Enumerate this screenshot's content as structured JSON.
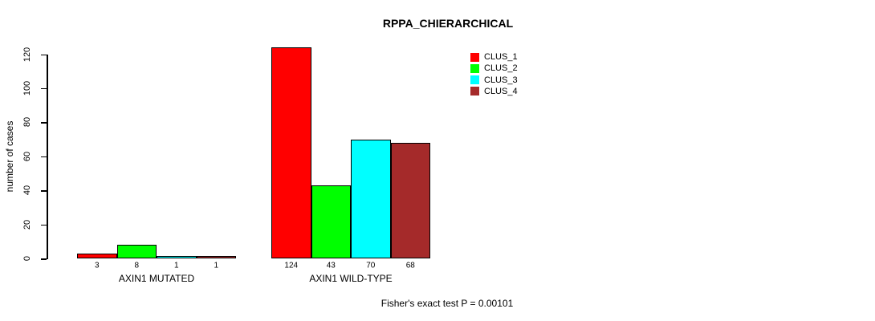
{
  "title": "RPPA_CHIERARCHICAL",
  "footnote": "Fisher's exact test P = 0.00101",
  "y_axis": {
    "label": "number of cases",
    "ticks": [
      0,
      20,
      40,
      60,
      80,
      100,
      120
    ]
  },
  "legend": {
    "items": [
      {
        "label": "CLUS_1",
        "color": "#FF0000"
      },
      {
        "label": "CLUS_2",
        "color": "#00FF00"
      },
      {
        "label": "CLUS_3",
        "color": "#00FFFF"
      },
      {
        "label": "CLUS_4",
        "color": "#A52A2A"
      }
    ]
  },
  "chart_data": {
    "type": "bar",
    "title": "RPPA_CHIERARCHICAL",
    "xlabel": "",
    "ylabel": "number of cases",
    "ylim": [
      0,
      130
    ],
    "axis_ticks": [
      0,
      20,
      40,
      60,
      80,
      100,
      120
    ],
    "grid": false,
    "legend_position": "top-right",
    "series_names": [
      "CLUS_1",
      "CLUS_2",
      "CLUS_3",
      "CLUS_4"
    ],
    "series_colors": [
      "#FF0000",
      "#00FF00",
      "#00FFFF",
      "#A52A2A"
    ],
    "groups": [
      {
        "label": "AXIN1 MUTATED",
        "values": [
          3,
          8,
          1,
          1
        ]
      },
      {
        "label": "AXIN1 WILD-TYPE",
        "values": [
          124,
          43,
          70,
          68
        ]
      }
    ],
    "annotation": "Fisher's exact test P = 0.00101"
  }
}
